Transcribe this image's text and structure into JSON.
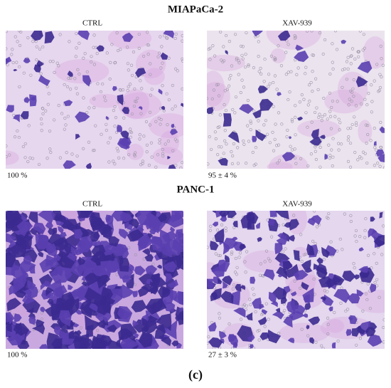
{
  "figures": [
    {
      "title": "MIAPaCa-2",
      "panels": [
        {
          "label": "CTRL",
          "caption": "100 %"
        },
        {
          "label": "XAV-939",
          "caption": "95 ± 4 %"
        }
      ]
    },
    {
      "title": "PANC-1",
      "panels": [
        {
          "label": "CTRL",
          "caption": "100 %"
        },
        {
          "label": "XAV-939",
          "caption": "27 ± 3 %"
        }
      ]
    }
  ],
  "panel_label": "(c)"
}
